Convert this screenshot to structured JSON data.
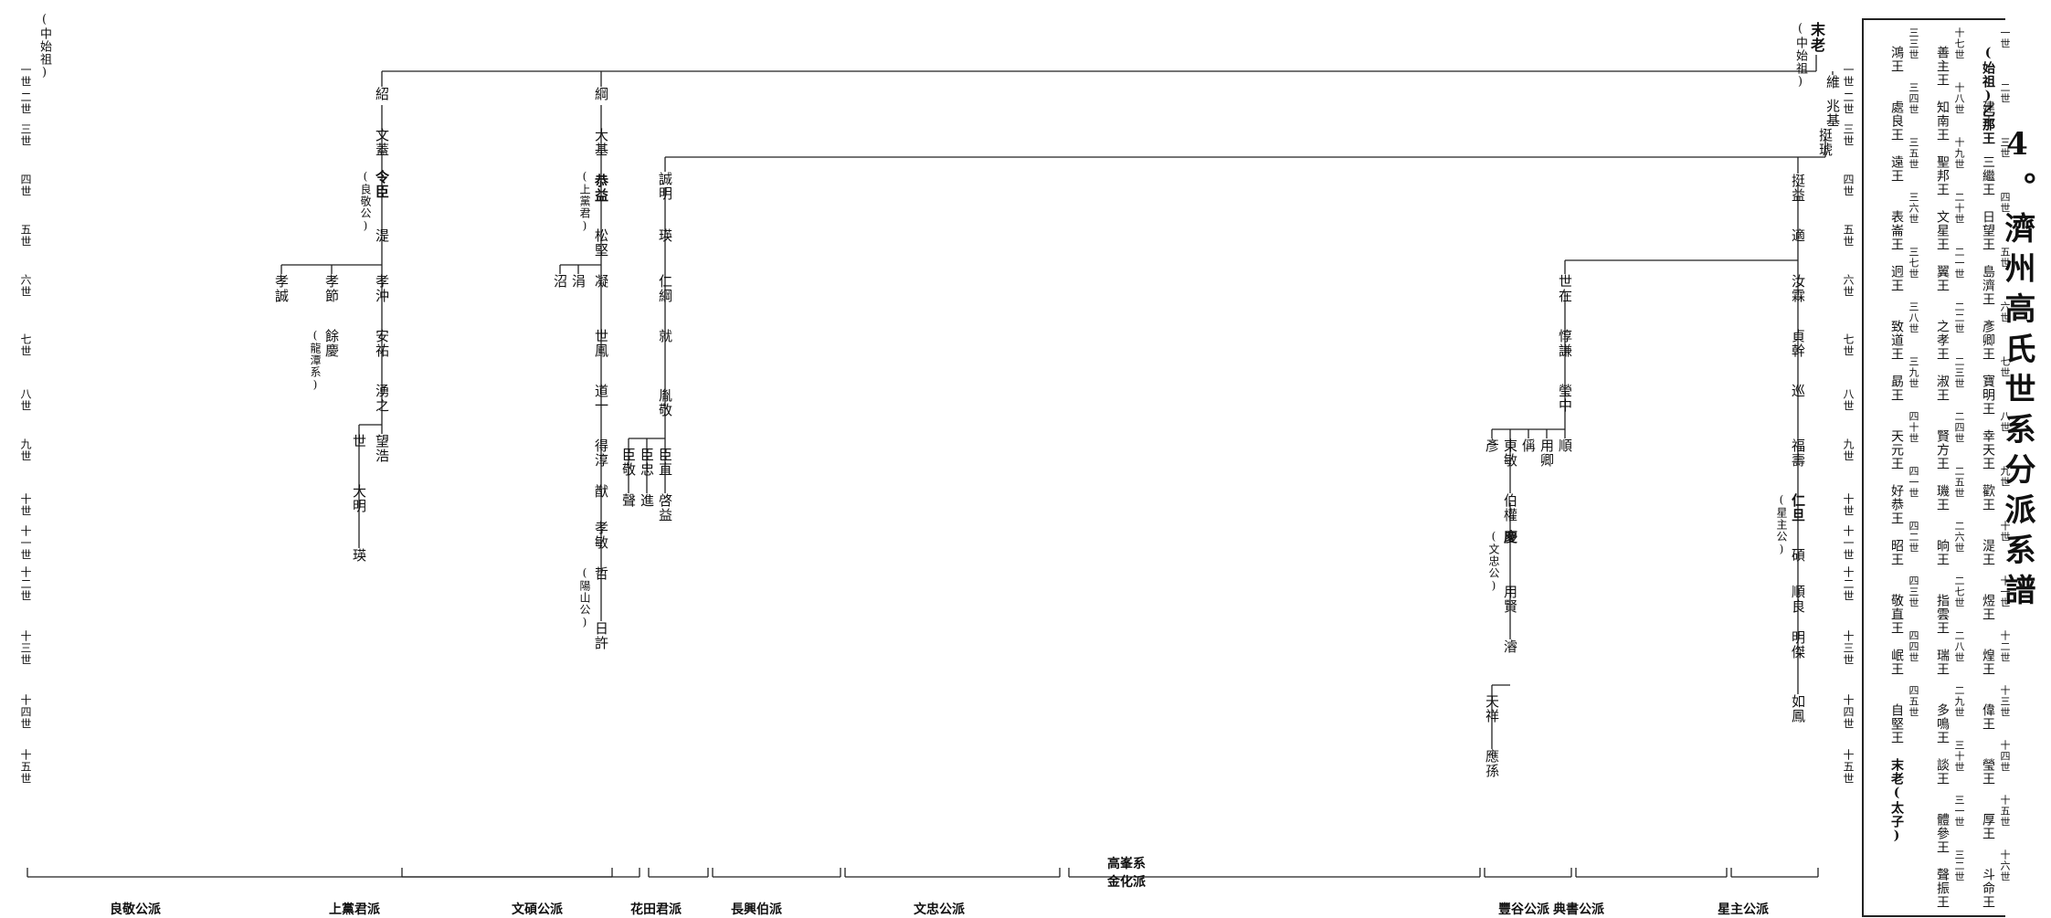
{
  "title": "4。濟州高氏世系分派系譜",
  "kings_box": {
    "rows": [
      [
        "(始祖)乙那王",
        "建王",
        "三繼王",
        "日望王",
        "島濟王",
        "彥卿王",
        "寶明王",
        "幸天王",
        "歡王",
        "湜王",
        "煜王",
        "煌王",
        "偉王",
        "瑩王",
        "厚王",
        "斗命王"
      ],
      [
        "善主王",
        "知南王",
        "聖邦王",
        "文星王",
        "翼王",
        "之孝王",
        "淑王",
        "賢方王",
        "璣王",
        "晌王",
        "指雲王",
        "瑞王",
        "多鳴王",
        "談王",
        "體參王",
        "聲振王"
      ],
      [
        "鴻王",
        "處良王",
        "遠王",
        "表崙王",
        "迥王",
        "致道王",
        "勗王",
        "天元王",
        "好恭王",
        "昭王",
        "敬直王",
        "岷王",
        "自堅王",
        "末老(太子)"
      ]
    ],
    "gens": [
      [
        "一世",
        "二世",
        "三世",
        "四世",
        "五世",
        "六世",
        "七世",
        "八世",
        "九世",
        "十世",
        "十一世",
        "十二世",
        "十三世",
        "十四世",
        "十五世",
        "十六世"
      ],
      [
        "十七世",
        "十八世",
        "十九世",
        "二十世",
        "二一世",
        "二二世",
        "二三世",
        "二四世",
        "二五世",
        "二六世",
        "二七世",
        "二八世",
        "二九世",
        "三十世",
        "三一世",
        "三二世"
      ],
      [
        "三三世",
        "三四世",
        "三五世",
        "三六世",
        "三七世",
        "三八世",
        "三九世",
        "四十世",
        "四一世",
        "四二世",
        "四三世",
        "四四世",
        "四五世"
      ]
    ]
  },
  "gen_labels": [
    "一世",
    "二世",
    "三世",
    "四世",
    "五世",
    "六世",
    "七世",
    "八世",
    "九世",
    "十世",
    "十一世",
    "十二世",
    "十三世",
    "十四世",
    "十五世"
  ],
  "left_gen_header": "(中始祖)",
  "root": {
    "name": "末老",
    "note": "(中始祖)"
  },
  "gen2": [
    "維",
    "兆基"
  ],
  "nodes": {
    "a1": "紹",
    "a2": "文蓋",
    "a3": "令臣",
    "a3n": "(良敬公)",
    "a4": "湜",
    "a5": "孝沖",
    "a5b": "孝節",
    "a5c": "孝誠",
    "a6": "安祐",
    "a6b": "餘慶",
    "a6bn": "(龍潭系)",
    "a7": "湧之",
    "a8": "望浩",
    "a8b": "世",
    "a9": "大明",
    "a10": "瑛",
    "b1": "綱",
    "b2": "大基",
    "b3": "恭益",
    "b3n": "(上黨君)",
    "b4": "松堅",
    "b5": "凝",
    "b5b": "涓",
    "b5c": "沼",
    "b6": "世鳳",
    "b7": "道一",
    "b8": "得淳",
    "b9": "猷",
    "b10": "孝敏",
    "b11": "哲",
    "b11n": "(陽山公)",
    "b12": "日許",
    "c1": "誠明",
    "c2": "瑛",
    "c3": "仁綱",
    "c4": "就",
    "c5": "胤敬",
    "c6": "臣直",
    "c6b": "臣忠",
    "c6c": "臣敬",
    "c7": "啓益",
    "c7b": "進",
    "c7c": "聲",
    "d1": "挺琥",
    "d2": "挺益",
    "d3": "適",
    "d4": "汝霖",
    "d5": "貞幹",
    "d6": "巡",
    "d7": "福壽",
    "d8": "仁旦",
    "d8n": "(星主公)",
    "d9": "碩",
    "d10": "順良",
    "d11": "明傑",
    "d12": "如鳳",
    "e1": "世在",
    "e2": "惇謙",
    "e3": "瑩中",
    "e4": "順",
    "e5": "用卿",
    "e6": "偁",
    "e7": "東敏",
    "e8": "彥",
    "e9": "伯權",
    "e10": "慶",
    "e10n": "(文忠公)",
    "e11": "用賢",
    "e12": "濬",
    "e13": "天祥",
    "e14": "應孫"
  },
  "sections": [
    "良敬公派",
    "上黨君派",
    "文碩公派",
    "花田君派",
    "長興伯派",
    "文忠公派",
    "高峯系",
    "金化派",
    "豐谷公派",
    "典書公派",
    "星主公派"
  ]
}
